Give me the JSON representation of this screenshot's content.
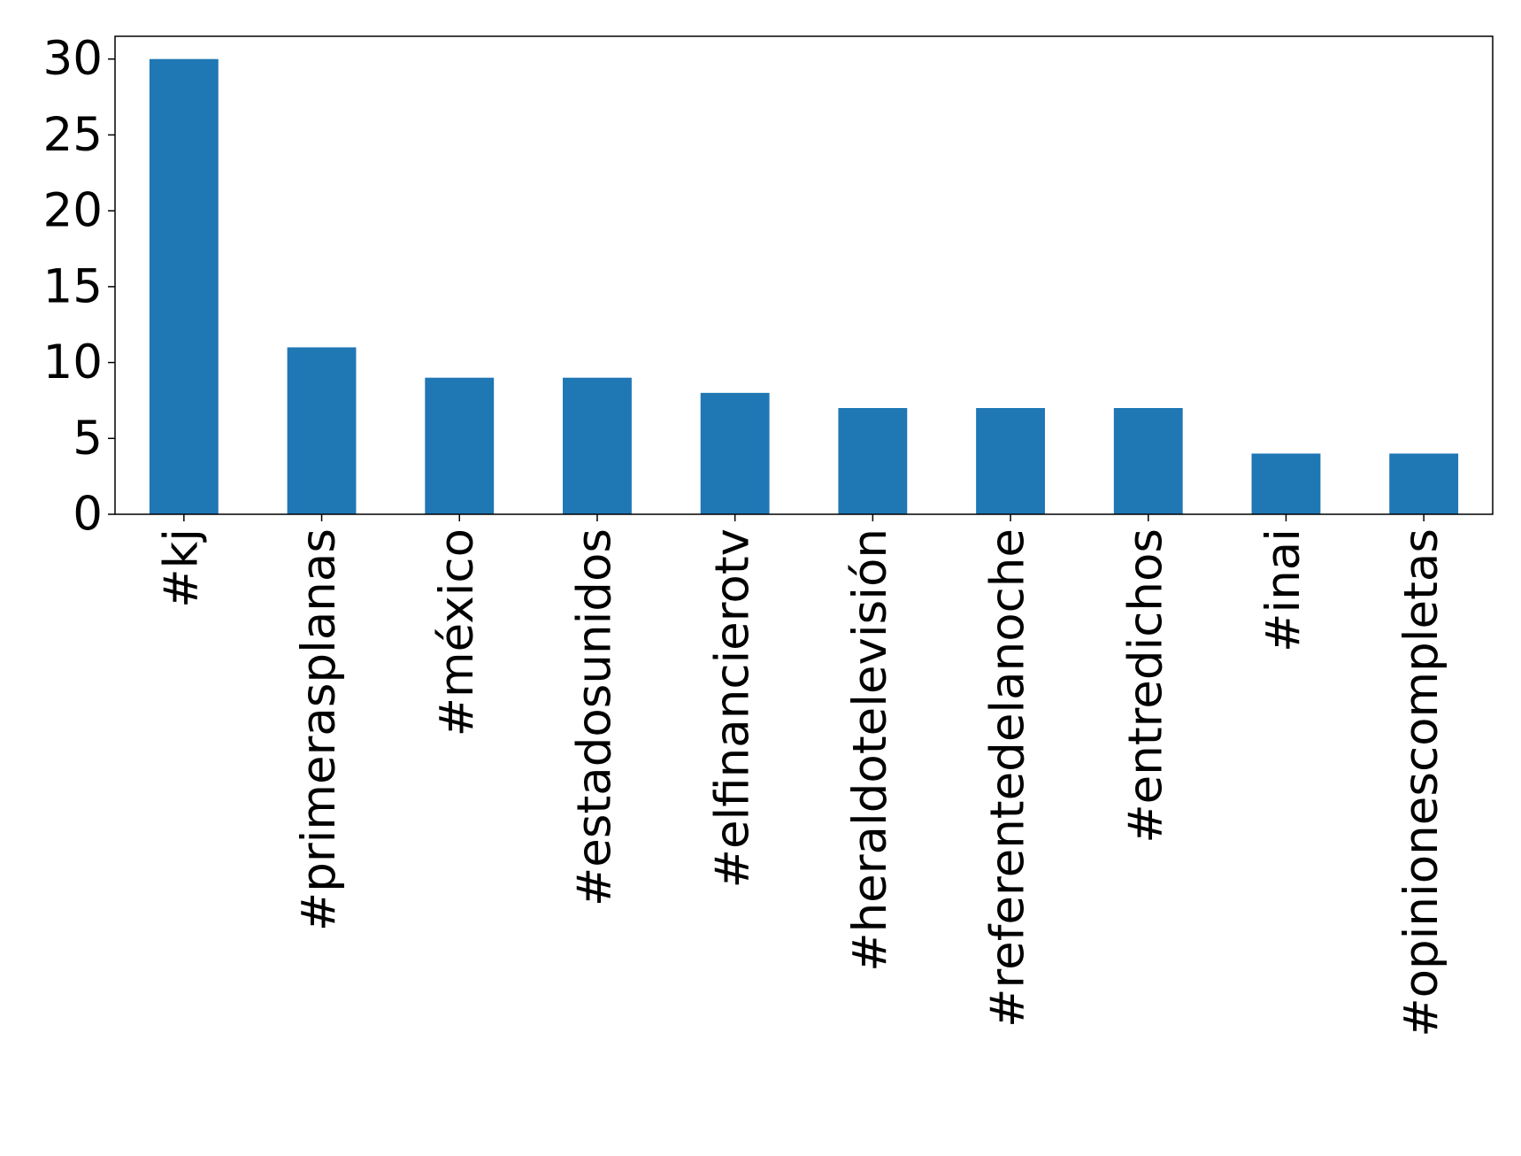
{
  "chart_data": {
    "type": "bar",
    "categories": [
      "#kj",
      "#primerasplanas",
      "#méxico",
      "#estadosunidos",
      "#elfinancierotv",
      "#heraldotelevisión",
      "#referentedelanoche",
      "#entredichos",
      "#inai",
      "#opinionescompletas"
    ],
    "values": [
      30,
      11,
      9,
      9,
      8,
      7,
      7,
      7,
      4,
      4
    ],
    "color": "#1f77b4",
    "ylim": [
      0,
      31.5
    ],
    "yticks": [
      0,
      5,
      10,
      15,
      20,
      25,
      30
    ],
    "grid": false
  }
}
